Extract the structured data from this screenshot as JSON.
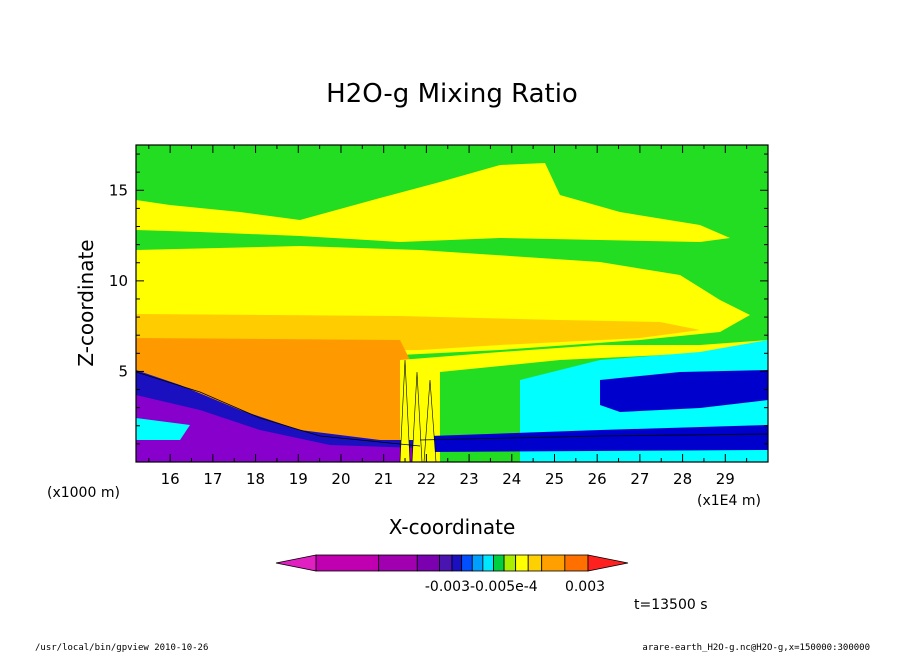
{
  "chart_data": {
    "type": "heatmap",
    "title": "H2O-g Mixing Ratio",
    "xlabel": "X-coordinate",
    "ylabel": "Z-coordinate",
    "x_unit_left": "(x1000 m)",
    "x_unit_right": "(x1E4 m)",
    "xlim": [
      15.2,
      30.0
    ],
    "ylim": [
      0,
      17.5
    ],
    "x_ticks": [
      16,
      17,
      18,
      19,
      20,
      21,
      22,
      23,
      24,
      25,
      26,
      27,
      28,
      29
    ],
    "y_ticks": [
      5,
      10,
      15
    ],
    "grid": false,
    "colorbar": {
      "labels": [
        "-0.003",
        "-0.005e-4",
        "0.003"
      ],
      "colors": [
        "#c000b0",
        "#a000b0",
        "#7a00b0",
        "#4a14b0",
        "#1a10c0",
        "#0050ff",
        "#00a0ff",
        "#00e8ff",
        "#00d040",
        "#a8ee00",
        "#ffff00",
        "#ffd000",
        "#ffa000",
        "#ff7000",
        "#ff2020"
      ]
    },
    "annotation": "t=13500 s",
    "bands": [
      {
        "level": "dry (green)",
        "z_range": [
          12.5,
          17.5
        ],
        "color": "#22dd22"
      },
      {
        "level": "yellow",
        "z_range": [
          8.5,
          12.0
        ],
        "color": "#ffff00"
      },
      {
        "level": "gold",
        "z_range": [
          7.0,
          8.5
        ],
        "color": "#ffcc00"
      },
      {
        "level": "orange (moist boundary layer)",
        "z_range": [
          0,
          7.0
        ],
        "color": "#ff9900"
      },
      {
        "level": "cyan (downstream)",
        "z_range": [
          2.0,
          6.5
        ],
        "color": "#00ffff"
      },
      {
        "level": "blue (downstream low)",
        "z_range": [
          0.5,
          5.0
        ],
        "color": "#0000cc"
      },
      {
        "level": "purple (upstream low)",
        "z_range": [
          0,
          4.0
        ],
        "color": "#8800cc"
      }
    ]
  },
  "footer": {
    "left": "/usr/local/bin/gpview  2010-10-26",
    "right": "arare-earth_H2O-g.nc@H2O-g,x=150000:300000"
  }
}
